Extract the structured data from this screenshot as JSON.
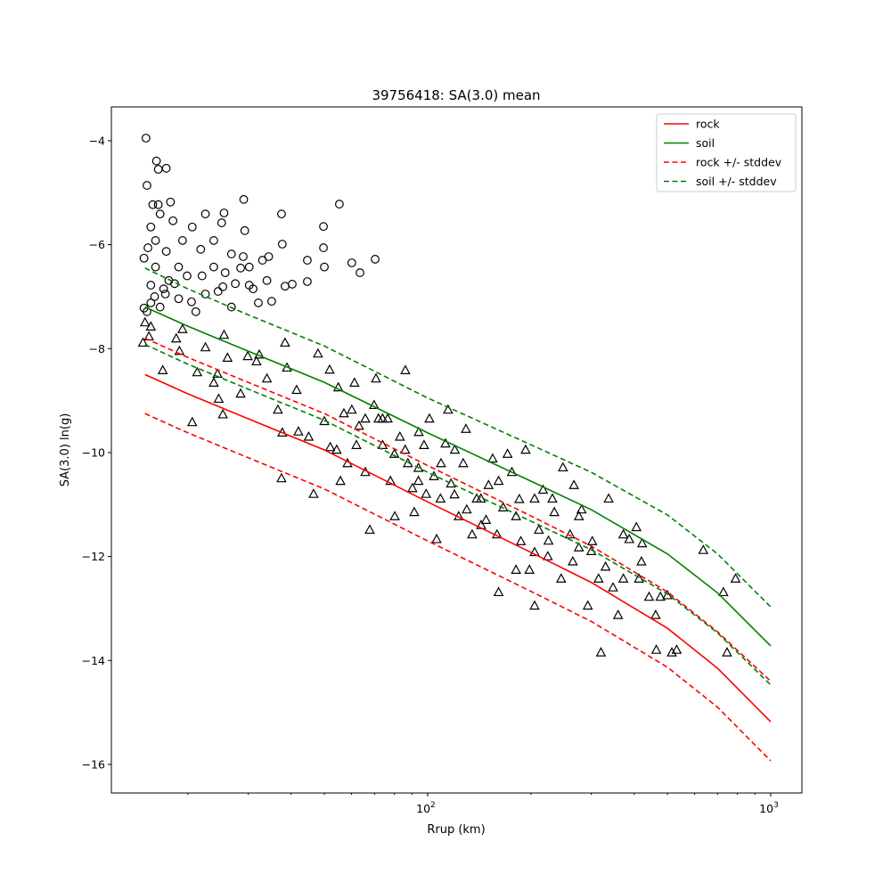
{
  "chart_data": {
    "type": "scatter",
    "title": "39756418: SA(3.0) mean",
    "xlabel": "Rrup (km)",
    "ylabel": "SA(3.0) ln(g)",
    "xscale": "log",
    "xlim": [
      11.97,
      1233
    ],
    "ylim": [
      -16.55,
      -3.35
    ],
    "xticks": [
      {
        "value": 100,
        "base": "10",
        "exp": "2"
      },
      {
        "value": 1000,
        "base": "10",
        "exp": "3"
      }
    ],
    "yticks": [
      -4,
      -6,
      -8,
      -10,
      -12,
      -14,
      -16
    ],
    "ytick_labels": [
      "−4",
      "−6",
      "−8",
      "−10",
      "−12",
      "−14",
      "−16"
    ],
    "legend_position": "top-right",
    "legend": [
      {
        "label": "rock",
        "color": "#ff0000",
        "style": "solid"
      },
      {
        "label": "soil",
        "color": "#008000",
        "style": "solid"
      },
      {
        "label": "rock +/- stddev",
        "color": "#ff0000",
        "style": "dashed"
      },
      {
        "label": "soil +/- stddev",
        "color": "#008000",
        "style": "dashed"
      }
    ],
    "curve_x": [
      15,
      20,
      30,
      50,
      100,
      200,
      300,
      500,
      700,
      1000
    ],
    "series": [
      {
        "name": "rock",
        "color": "#ff0000",
        "style": "solid",
        "values": [
          -8.5,
          -8.87,
          -9.35,
          -9.95,
          -10.95,
          -11.92,
          -12.5,
          -13.38,
          -14.15,
          -15.18
        ]
      },
      {
        "name": "rock - stddev",
        "color": "#ff0000",
        "style": "dashed",
        "values": [
          -9.25,
          -9.62,
          -10.1,
          -10.7,
          -11.7,
          -12.67,
          -13.25,
          -14.13,
          -14.9,
          -15.93
        ]
      },
      {
        "name": "rock + stddev",
        "color": "#ff0000",
        "style": "dashed",
        "values": [
          -7.8,
          -8.17,
          -8.65,
          -9.25,
          -10.25,
          -11.22,
          -11.8,
          -12.68,
          -13.45,
          -14.4
        ]
      },
      {
        "name": "soil",
        "color": "#008000",
        "style": "solid",
        "values": [
          -7.2,
          -7.57,
          -8.05,
          -8.65,
          -9.62,
          -10.55,
          -11.1,
          -11.95,
          -12.7,
          -13.72
        ]
      },
      {
        "name": "soil - stddev",
        "color": "#008000",
        "style": "dashed",
        "values": [
          -7.92,
          -8.3,
          -8.78,
          -9.38,
          -10.38,
          -11.32,
          -11.87,
          -12.72,
          -13.47,
          -14.47
        ]
      },
      {
        "name": "soil + stddev",
        "color": "#008000",
        "style": "dashed",
        "values": [
          -6.45,
          -6.85,
          -7.35,
          -7.95,
          -8.95,
          -9.85,
          -10.38,
          -11.2,
          -11.95,
          -12.97
        ]
      }
    ],
    "circles": [
      [
        15.1,
        -3.95
      ],
      [
        16.2,
        -4.39
      ],
      [
        16.4,
        -4.55
      ],
      [
        17.3,
        -4.53
      ],
      [
        15.2,
        -4.86
      ],
      [
        15.8,
        -5.23
      ],
      [
        16.4,
        -5.23
      ],
      [
        17.8,
        -5.18
      ],
      [
        16.6,
        -5.41
      ],
      [
        15.6,
        -5.66
      ],
      [
        18.1,
        -5.54
      ],
      [
        16.1,
        -5.92
      ],
      [
        19.3,
        -5.92
      ],
      [
        15.3,
        -6.06
      ],
      [
        17.3,
        -6.13
      ],
      [
        22.5,
        -5.41
      ],
      [
        25.5,
        -5.39
      ],
      [
        25.1,
        -5.58
      ],
      [
        29.3,
        -5.73
      ],
      [
        29.1,
        -5.13
      ],
      [
        37.5,
        -5.41
      ],
      [
        55.3,
        -5.22
      ],
      [
        49.7,
        -5.65
      ],
      [
        49.7,
        -6.06
      ],
      [
        50,
        -6.43
      ],
      [
        37.7,
        -5.99
      ],
      [
        60.1,
        -6.35
      ],
      [
        63.5,
        -6.54
      ],
      [
        70.3,
        -6.28
      ],
      [
        44.6,
        -6.3
      ],
      [
        29,
        -6.23
      ],
      [
        34.4,
        -6.23
      ],
      [
        25.7,
        -6.54
      ],
      [
        35.1,
        -7.09
      ],
      [
        38.4,
        -6.8
      ],
      [
        40.3,
        -6.76
      ],
      [
        44.6,
        -6.71
      ],
      [
        30.2,
        -6.78
      ],
      [
        22.5,
        -6.95
      ],
      [
        18.8,
        -7.04
      ],
      [
        15.2,
        -7.29
      ],
      [
        16.6,
        -7.2
      ],
      [
        21.1,
        -7.29
      ],
      [
        26.8,
        -7.2
      ],
      [
        15.6,
        -6.78
      ],
      [
        16.1,
        -6.43
      ],
      [
        14.9,
        -6.26
      ],
      [
        17.6,
        -6.69
      ],
      [
        19.9,
        -6.6
      ],
      [
        23.8,
        -6.43
      ],
      [
        26.8,
        -6.18
      ],
      [
        21.8,
        -6.09
      ],
      [
        20.6,
        -5.66
      ],
      [
        18.8,
        -6.43
      ],
      [
        25.3,
        -6.81
      ],
      [
        32.1,
        -7.12
      ],
      [
        17.2,
        -6.95
      ],
      [
        15.6,
        -7.12
      ],
      [
        30.2,
        -6.43
      ],
      [
        23.8,
        -5.92
      ],
      [
        34.0,
        -6.69
      ],
      [
        14.9,
        -7.22
      ],
      [
        16.0,
        -7.0
      ],
      [
        17.0,
        -6.85
      ],
      [
        18.3,
        -6.75
      ],
      [
        20.5,
        -7.1
      ],
      [
        22.0,
        -6.6
      ],
      [
        24.5,
        -6.9
      ],
      [
        27.5,
        -6.75
      ],
      [
        28.5,
        -6.45
      ],
      [
        31.0,
        -6.85
      ],
      [
        33.0,
        -6.3
      ]
    ],
    "triangles": [
      [
        15.0,
        -7.5
      ],
      [
        15.4,
        -7.77
      ],
      [
        14.8,
        -7.89
      ],
      [
        15.6,
        -7.58
      ],
      [
        16.9,
        -8.42
      ],
      [
        18.5,
        -7.81
      ],
      [
        18.9,
        -8.05
      ],
      [
        19.3,
        -7.63
      ],
      [
        20.6,
        -9.42
      ],
      [
        21.3,
        -8.46
      ],
      [
        22.5,
        -7.98
      ],
      [
        23.8,
        -8.66
      ],
      [
        24.4,
        -8.49
      ],
      [
        25.5,
        -7.74
      ],
      [
        26.1,
        -8.18
      ],
      [
        24.6,
        -8.97
      ],
      [
        25.3,
        -9.27
      ],
      [
        28.5,
        -8.87
      ],
      [
        29.9,
        -8.15
      ],
      [
        32.3,
        -8.12
      ],
      [
        31.7,
        -8.25
      ],
      [
        34.0,
        -8.58
      ],
      [
        36.6,
        -9.18
      ],
      [
        37.7,
        -9.62
      ],
      [
        38.4,
        -7.89
      ],
      [
        38.9,
        -8.37
      ],
      [
        41.5,
        -8.8
      ],
      [
        37.5,
        -10.5
      ],
      [
        46.5,
        -10.8
      ],
      [
        47.9,
        -8.1
      ],
      [
        51.8,
        -8.41
      ],
      [
        54.9,
        -8.75
      ],
      [
        54.3,
        -9.95
      ],
      [
        55.7,
        -10.55
      ],
      [
        60.1,
        -9.18
      ],
      [
        61.2,
        -8.66
      ],
      [
        63.1,
        -9.49
      ],
      [
        65.8,
        -10.38
      ],
      [
        67.8,
        -11.49
      ],
      [
        70.7,
        -8.58
      ],
      [
        71.9,
        -9.35
      ],
      [
        73.9,
        -9.86
      ],
      [
        76.5,
        -9.35
      ],
      [
        77.9,
        -10.55
      ],
      [
        80.2,
        -11.23
      ],
      [
        86.1,
        -8.42
      ],
      [
        87.6,
        -10.21
      ],
      [
        90.3,
        -10.69
      ],
      [
        91.4,
        -11.15
      ],
      [
        94.2,
        -9.61
      ],
      [
        97.6,
        -9.86
      ],
      [
        101.2,
        -9.35
      ],
      [
        104.3,
        -10.46
      ],
      [
        106.2,
        -11.67
      ],
      [
        109.4,
        -10.21
      ],
      [
        112.7,
        -9.83
      ],
      [
        114.7,
        -9.18
      ],
      [
        119.7,
        -10.81
      ],
      [
        123.2,
        -11.23
      ],
      [
        127,
        -10.21
      ],
      [
        129.3,
        -9.55
      ],
      [
        134.8,
        -11.58
      ],
      [
        139,
        -10.89
      ],
      [
        143.2,
        -11.4
      ],
      [
        150.5,
        -10.63
      ],
      [
        154.7,
        -10.12
      ],
      [
        159.3,
        -11.58
      ],
      [
        161,
        -12.69
      ],
      [
        166,
        -11.06
      ],
      [
        171,
        -10.03
      ],
      [
        176,
        -10.38
      ],
      [
        181,
        -11.23
      ],
      [
        187,
        -11.71
      ],
      [
        193,
        -9.95
      ],
      [
        198,
        -12.26
      ],
      [
        205,
        -10.89
      ],
      [
        211,
        -11.49
      ],
      [
        217,
        -10.72
      ],
      [
        224,
        -12.0
      ],
      [
        234,
        -11.15
      ],
      [
        245,
        -12.43
      ],
      [
        248,
        -10.29
      ],
      [
        260,
        -11.58
      ],
      [
        267,
        -10.63
      ],
      [
        276,
        -11.83
      ],
      [
        281,
        -11.1
      ],
      [
        293,
        -12.95
      ],
      [
        302,
        -11.71
      ],
      [
        315,
        -12.43
      ],
      [
        320,
        -13.85
      ],
      [
        337,
        -10.89
      ],
      [
        347,
        -12.6
      ],
      [
        359,
        -13.13
      ],
      [
        372,
        -12.43
      ],
      [
        387,
        -11.67
      ],
      [
        406,
        -11.44
      ],
      [
        413,
        -12.43
      ],
      [
        422,
        -11.75
      ],
      [
        442,
        -12.78
      ],
      [
        464,
        -13.8
      ],
      [
        477,
        -12.78
      ],
      [
        515,
        -13.85
      ],
      [
        532,
        -13.8
      ],
      [
        636,
        -11.88
      ],
      [
        728,
        -12.69
      ],
      [
        746,
        -13.85
      ],
      [
        790,
        -12.43
      ],
      [
        462,
        -13.13
      ],
      [
        94,
        -10.3
      ],
      [
        86,
        -9.95
      ],
      [
        80,
        -10.03
      ],
      [
        73.9,
        -9.35
      ],
      [
        69.8,
        -9.09
      ],
      [
        65.8,
        -9.35
      ],
      [
        62,
        -9.86
      ],
      [
        58.4,
        -10.21
      ],
      [
        94,
        -10.55
      ],
      [
        109,
        -10.89
      ],
      [
        120,
        -9.95
      ],
      [
        143,
        -10.89
      ],
      [
        161,
        -10.55
      ],
      [
        205,
        -11.92
      ],
      [
        231,
        -10.89
      ],
      [
        276,
        -11.23
      ],
      [
        372,
        -11.58
      ],
      [
        205,
        -12.95
      ],
      [
        181,
        -12.26
      ],
      [
        45,
        -9.7
      ],
      [
        42,
        -9.6
      ],
      [
        50,
        -9.4
      ],
      [
        52,
        -9.9
      ],
      [
        57,
        -9.25
      ],
      [
        83,
        -9.7
      ],
      [
        99,
        -10.8
      ],
      [
        117,
        -10.6
      ],
      [
        130,
        -11.1
      ],
      [
        148,
        -11.3
      ],
      [
        185,
        -10.9
      ],
      [
        225,
        -11.7
      ],
      [
        265,
        -12.1
      ],
      [
        300,
        -11.9
      ],
      [
        330,
        -12.2
      ],
      [
        420,
        -12.1
      ],
      [
        500,
        -12.75
      ]
    ]
  }
}
